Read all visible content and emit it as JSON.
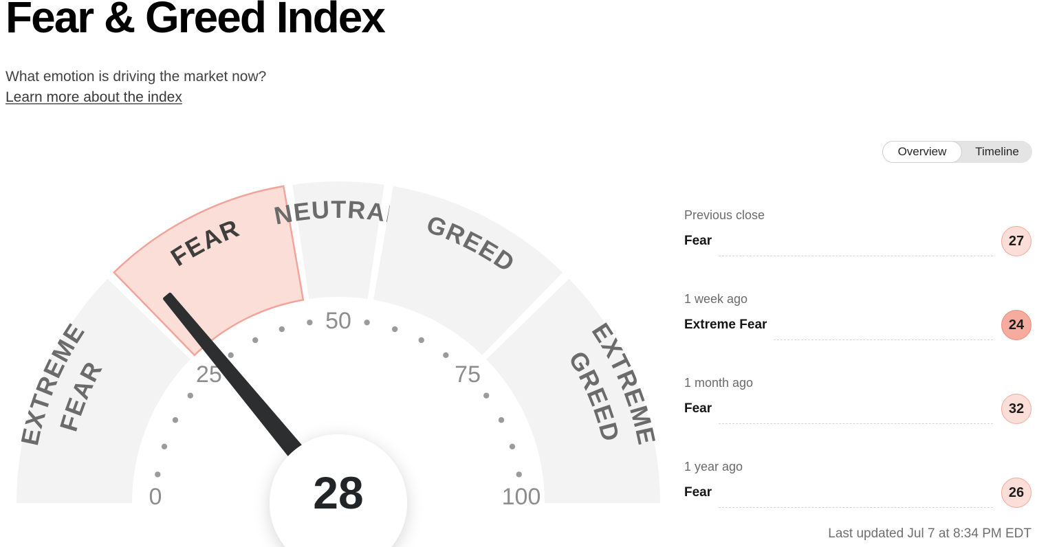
{
  "page": {
    "title": "Fear & Greed Index",
    "subtitle": "What emotion is driving the market now?",
    "learn_more": "Learn more about the index",
    "last_updated": "Last updated Jul 7 at 8:34 PM EDT"
  },
  "tabs": {
    "overview_label": "Overview",
    "timeline_label": "Timeline",
    "selected": "Overview"
  },
  "colors": {
    "segment_gray": "#f3f3f4",
    "wedge_active_fill": "#fbded7",
    "wedge_active_stroke": "#f2a39a",
    "segment_label": "#6b6b6b",
    "segment_label_active": "#3e3e3e",
    "tick_number": "#8d8d8d",
    "tick_dot": "#9b9b9b",
    "needle": "#2c2e30",
    "value_text": "#222527",
    "badge_light": "#fbded7",
    "badge_strong": "#f5ac9f"
  },
  "chart_data": {
    "type": "gauge",
    "title": "Fear & Greed Index",
    "min": 0,
    "max": 100,
    "value": 28,
    "value_label": "28",
    "current_mood": "Fear",
    "axis_ticks": [
      0,
      25,
      50,
      75,
      100
    ],
    "dot_step": 5,
    "segments": [
      {
        "label": "EXTREME FEAR",
        "lines": [
          "EXTREME",
          "FEAR"
        ],
        "from": 0,
        "to": 25,
        "active": false
      },
      {
        "label": "FEAR",
        "lines": [
          "FEAR"
        ],
        "from": 25,
        "to": 45,
        "active": true
      },
      {
        "label": "NEUTRAL",
        "lines": [
          "NEUTRAL"
        ],
        "from": 45,
        "to": 55,
        "active": false
      },
      {
        "label": "GREED",
        "lines": [
          "GREED"
        ],
        "from": 55,
        "to": 75,
        "active": false
      },
      {
        "label": "EXTREME GREED",
        "lines": [
          "EXTREME",
          "GREED"
        ],
        "from": 75,
        "to": 100,
        "active": false
      }
    ]
  },
  "stats": {
    "rows": [
      {
        "label": "Previous close",
        "value": "Fear",
        "score": "27",
        "tone": "light"
      },
      {
        "label": "1 week ago",
        "value": "Extreme Fear",
        "score": "24",
        "tone": "strong"
      },
      {
        "label": "1 month ago",
        "value": "Fear",
        "score": "32",
        "tone": "light"
      },
      {
        "label": "1 year ago",
        "value": "Fear",
        "score": "26",
        "tone": "light"
      }
    ]
  }
}
